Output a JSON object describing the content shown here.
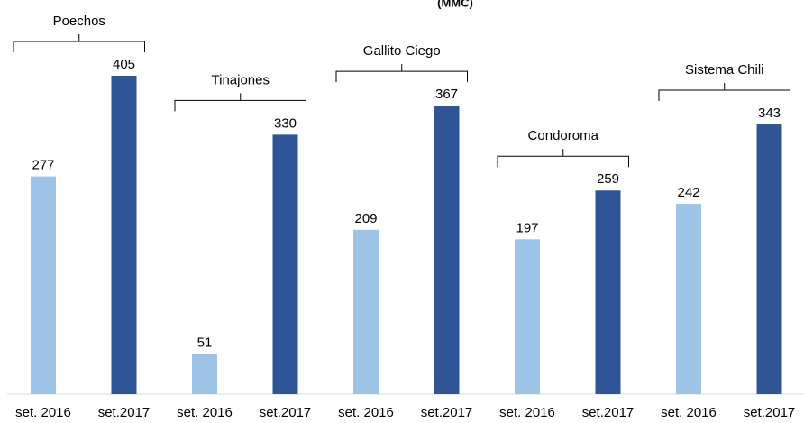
{
  "chart_data": {
    "type": "bar",
    "title": "(MMC)",
    "colors": [
      "#9dc3e6",
      "#2f5597"
    ],
    "groups": [
      {
        "name": "Poechos",
        "categories": [
          "set. 2016",
          "set.2017"
        ],
        "values": [
          277,
          405
        ]
      },
      {
        "name": "Tinajones",
        "categories": [
          "set. 2016",
          "set.2017"
        ],
        "values": [
          51,
          330
        ]
      },
      {
        "name": "Gallito Ciego",
        "categories": [
          "set. 2016",
          "set.2017"
        ],
        "values": [
          209,
          367
        ]
      },
      {
        "name": "Condoroma",
        "categories": [
          "set. 2016",
          "set.2017"
        ],
        "values": [
          197,
          259
        ]
      },
      {
        "name": "Sistema Chili",
        "categories": [
          "set. 2016",
          "set.2017"
        ],
        "values": [
          242,
          343
        ]
      }
    ]
  }
}
